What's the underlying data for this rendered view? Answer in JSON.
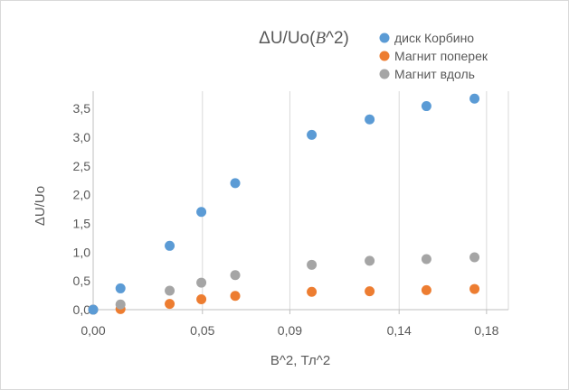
{
  "chart_data": {
    "type": "scatter",
    "title": "ΔU/Uo(",
    "title_italic": "B",
    "title_suffix": "^2)",
    "xlabel": "B^2, Тл^2",
    "ylabel": "ΔU/Uo",
    "xlim": [
      0,
      0.19
    ],
    "ylim": [
      0,
      3.8
    ],
    "x_ticks": [
      0,
      0.05,
      0.09,
      0.14,
      0.18
    ],
    "x_tick_labels": [
      "0,00",
      "0,05",
      "0,09",
      "0,14",
      "0,18"
    ],
    "y_ticks": [
      0,
      0.5,
      1.0,
      1.5,
      2.0,
      2.5,
      3.0,
      3.5
    ],
    "y_tick_labels": [
      "0,0",
      "0,5",
      "1,0",
      "1,5",
      "2,0",
      "2,5",
      "3,0",
      "3,5"
    ],
    "grid": "vertical",
    "legend_position": "top-right",
    "series": [
      {
        "name": "диск Корбино",
        "color": "#5b9bd5",
        "x": [
          0,
          0.0125,
          0.035,
          0.0495,
          0.065,
          0.1,
          0.1265,
          0.1525,
          0.1745
        ],
        "y": [
          0,
          0.37,
          1.11,
          1.7,
          2.2,
          3.04,
          3.31,
          3.54,
          3.67
        ]
      },
      {
        "name": "Магнит поперек",
        "color": "#ed7d31",
        "x": [
          0,
          0.0125,
          0.035,
          0.0495,
          0.065,
          0.1,
          0.1265,
          0.1525,
          0.1745
        ],
        "y": [
          0,
          0.01,
          0.1,
          0.18,
          0.24,
          0.31,
          0.32,
          0.34,
          0.36
        ]
      },
      {
        "name": "Магнит вдоль",
        "color": "#a5a5a5",
        "x": [
          0,
          0.0125,
          0.035,
          0.0495,
          0.065,
          0.1,
          0.1265,
          0.1525,
          0.1745
        ],
        "y": [
          0,
          0.09,
          0.33,
          0.47,
          0.6,
          0.78,
          0.85,
          0.88,
          0.91
        ]
      }
    ]
  }
}
